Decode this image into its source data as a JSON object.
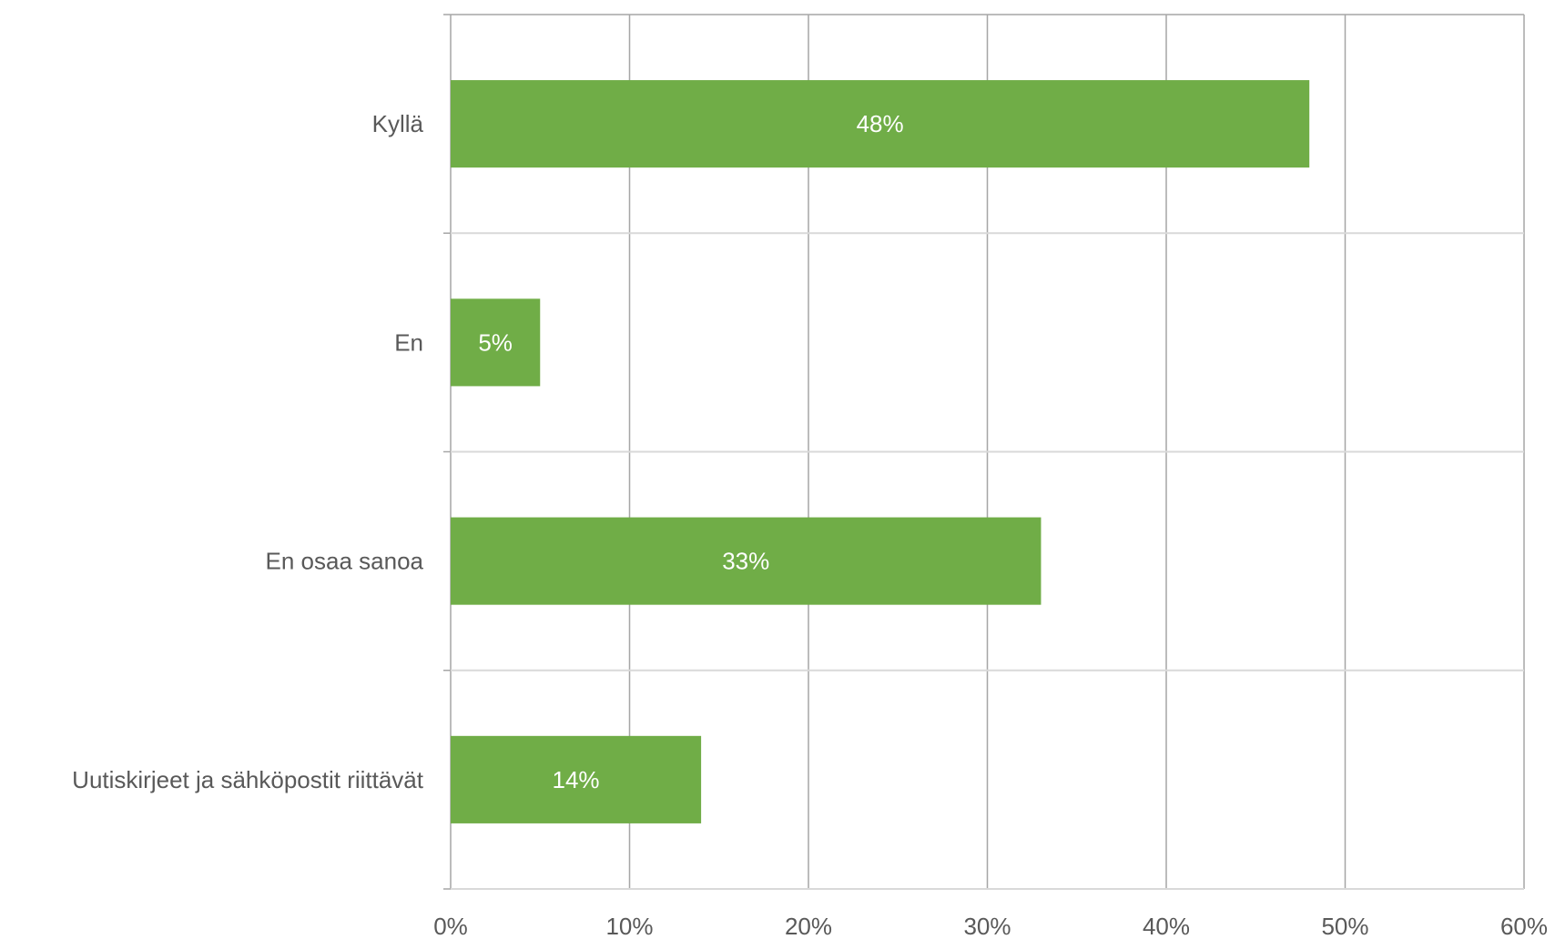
{
  "chart_data": {
    "type": "bar",
    "orientation": "horizontal",
    "categories": [
      "Kyllä",
      "En",
      "En osaa sanoa",
      "Uutiskirjeet ja sähköpostit riittävät"
    ],
    "values": [
      48,
      5,
      33,
      14
    ],
    "data_labels": [
      "48%",
      "5%",
      "33%",
      "14%"
    ],
    "xlim": [
      0,
      60
    ],
    "x_ticks": [
      0,
      10,
      20,
      30,
      40,
      50,
      60
    ],
    "x_tick_labels": [
      "0%",
      "10%",
      "20%",
      "30%",
      "40%",
      "50%",
      "60%"
    ],
    "title": "",
    "xlabel": "",
    "ylabel": "",
    "grid": true,
    "legend": "none",
    "bar_color": "#70ad47",
    "gridline_color": "#a6a6a6",
    "category_separator_color": "#d9d9d9",
    "text_color": "#595959",
    "data_label_color": "#ffffff"
  }
}
